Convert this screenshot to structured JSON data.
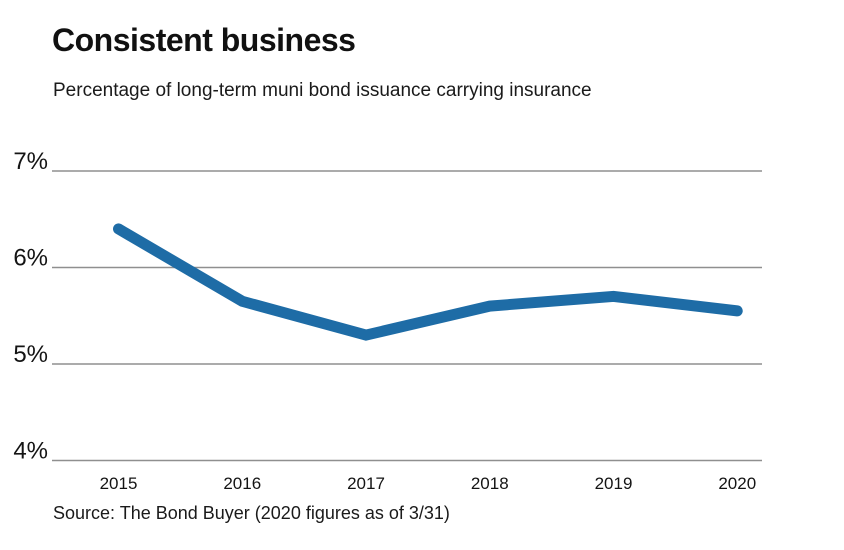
{
  "header": {
    "title": "Consistent business",
    "subtitle": "Percentage of long-term muni bond issuance carrying insurance"
  },
  "source_note": "Source: The Bond Buyer (2020 figures as of 3/31)",
  "colors": {
    "line": "#1e6ca6",
    "gridline": "#8f8f8f",
    "axis_text": "#141414"
  },
  "chart_data": {
    "type": "line",
    "title": "Consistent business",
    "subtitle": "Percentage of long-term muni bond issuance carrying insurance",
    "categories": [
      "2015",
      "2016",
      "2017",
      "2018",
      "2019",
      "2020"
    ],
    "series": [
      {
        "name": "Percentage of long-term muni bond issuance carrying insurance",
        "values": [
          6.4,
          5.65,
          5.3,
          5.6,
          5.7,
          5.55
        ]
      }
    ],
    "yticks": [
      {
        "label": "7%",
        "value": 7
      },
      {
        "label": "6%",
        "value": 6
      },
      {
        "label": "5%",
        "value": 5
      },
      {
        "label": "4%",
        "value": 4
      }
    ],
    "ylim": [
      4,
      7.3
    ],
    "grid": true,
    "legend": false,
    "xlabel": "",
    "ylabel": "",
    "line_color": "#1e6ca6",
    "line_width": 11,
    "annotation": "Source: The Bond Buyer (2020 figures as of 3/31)"
  }
}
